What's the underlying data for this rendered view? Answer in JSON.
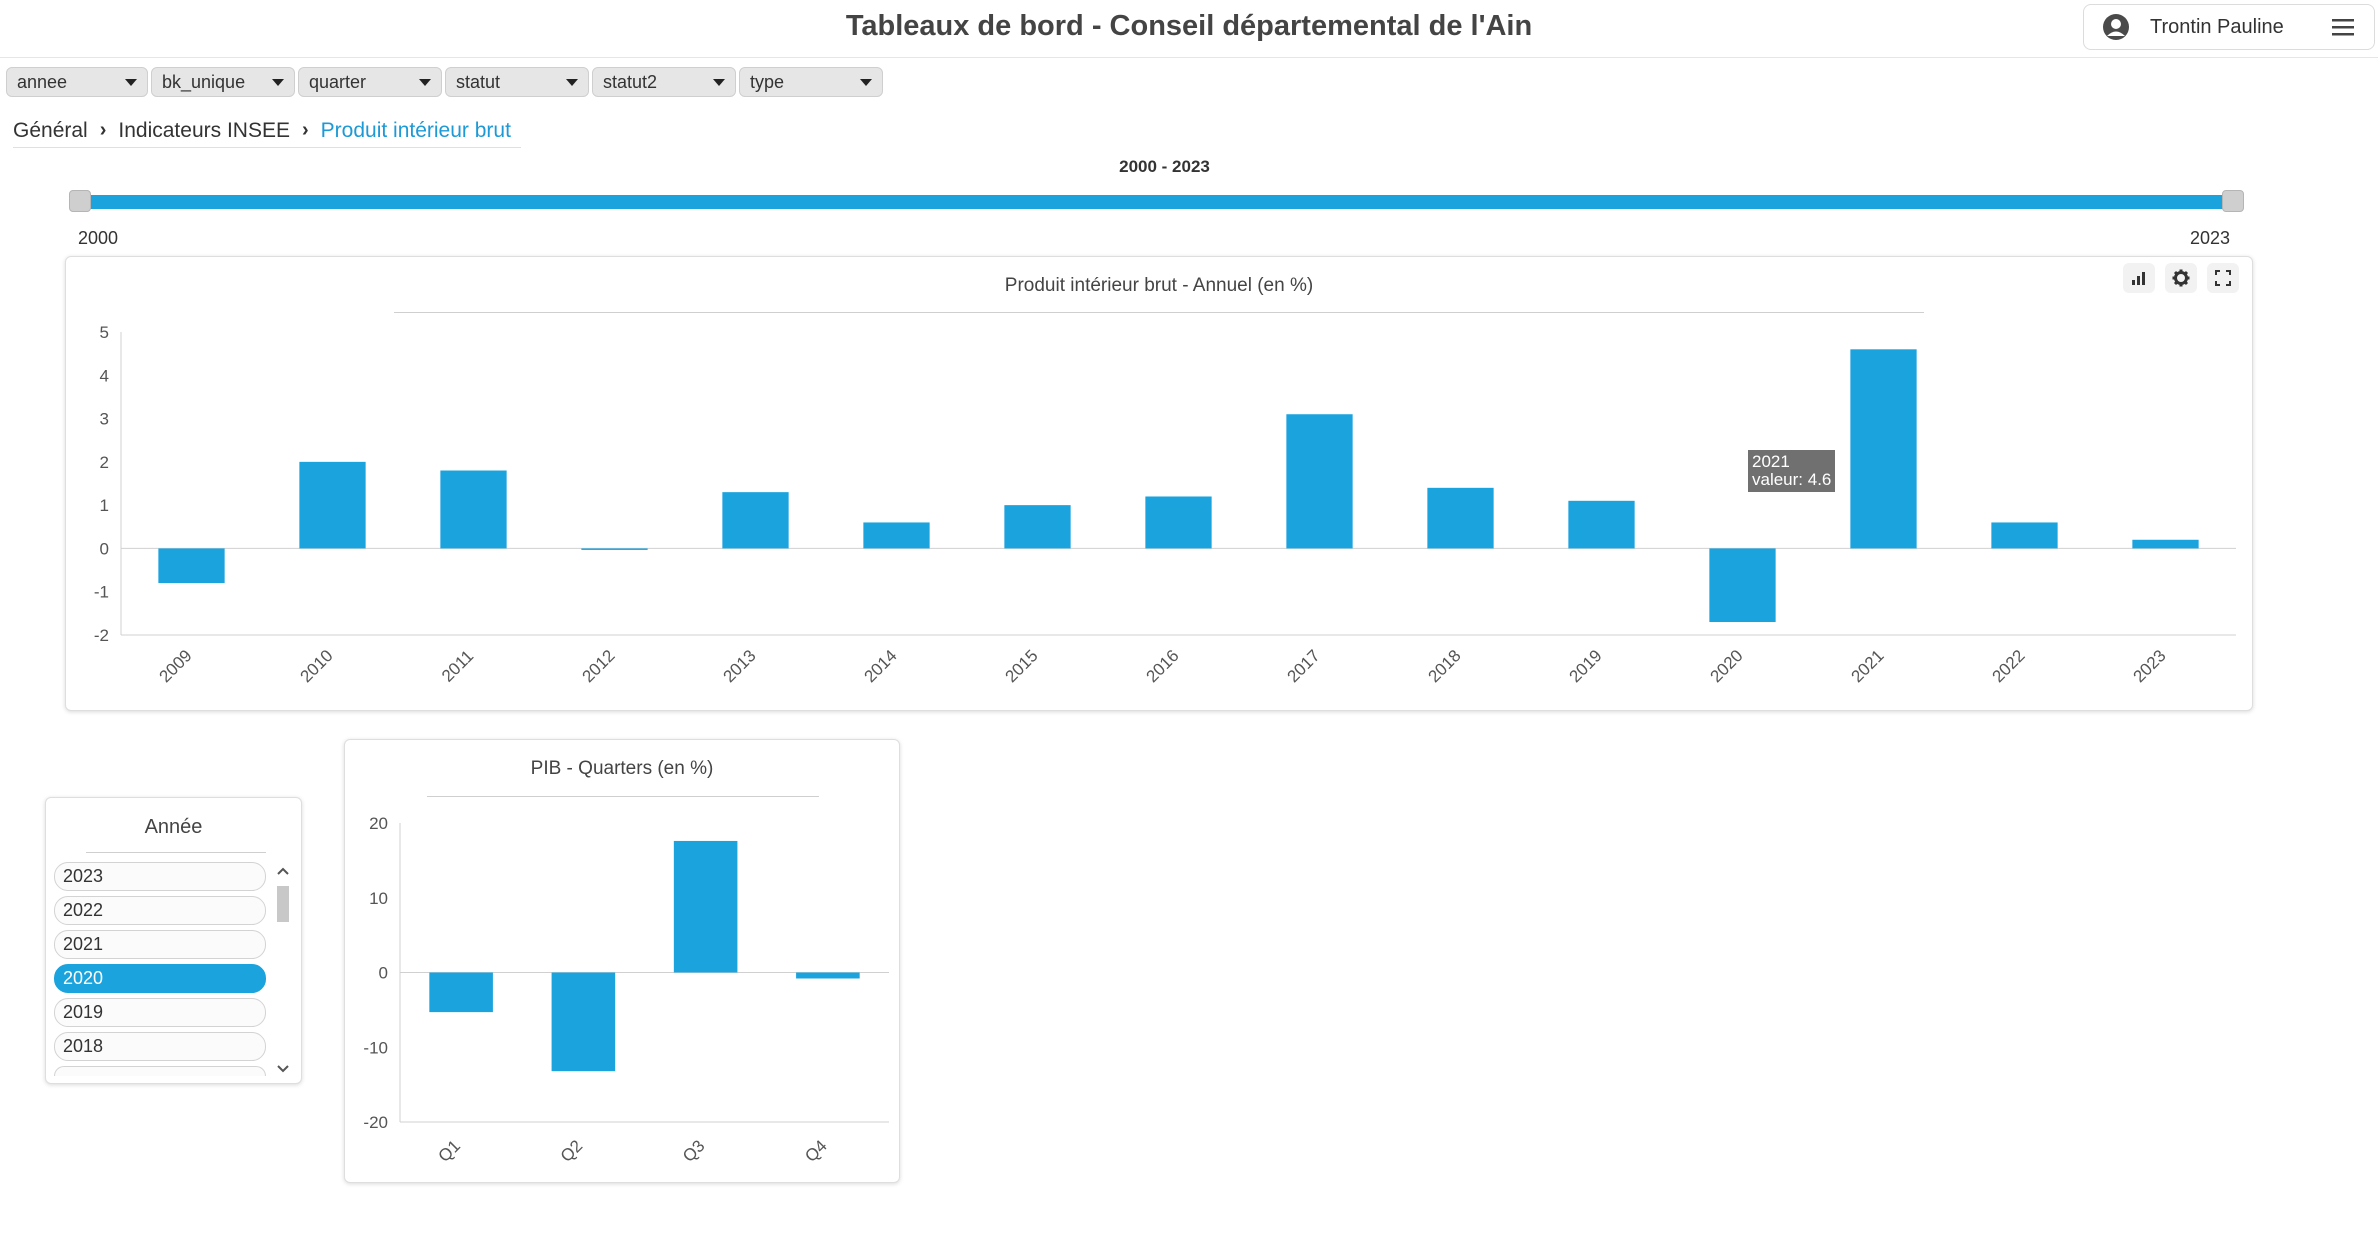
{
  "header": {
    "title": "Tableaux de bord - Conseil départemental de l'Ain",
    "user_name": "Trontin Pauline"
  },
  "filters": [
    {
      "label": "annee"
    },
    {
      "label": "bk_unique"
    },
    {
      "label": "quarter"
    },
    {
      "label": "statut"
    },
    {
      "label": "statut2"
    },
    {
      "label": "type"
    }
  ],
  "breadcrumb": {
    "items": [
      "Général",
      "Indicateurs INSEE"
    ],
    "current": "Produit intérieur brut"
  },
  "range": {
    "label": "2000 - 2023",
    "min_label": "2000",
    "max_label": "2023"
  },
  "year_filter": {
    "title": "Année",
    "items": [
      "2023",
      "2022",
      "2021",
      "2020",
      "2019",
      "2018"
    ],
    "selected": "2020"
  },
  "tooltip": {
    "line1": "2021",
    "line2": "valeur: 4.6"
  },
  "colors": {
    "accent": "#1aa3dd",
    "bar": "#1aa3dd"
  },
  "chart_data": [
    {
      "type": "bar",
      "title": "Produit intérieur brut - Annuel (en %)",
      "categories": [
        "2009",
        "2010",
        "2011",
        "2012",
        "2013",
        "2014",
        "2015",
        "2016",
        "2017",
        "2018",
        "2019",
        "2020",
        "2021",
        "2022",
        "2023"
      ],
      "values": [
        -0.8,
        2.0,
        1.8,
        0.0,
        1.3,
        0.6,
        1.0,
        1.2,
        3.1,
        1.4,
        1.1,
        -1.7,
        4.6,
        0.6,
        0.2
      ],
      "yticks": [
        5,
        4,
        3,
        2,
        1,
        0,
        -1,
        -2
      ],
      "ylim": [
        -2,
        5
      ],
      "grid": false
    },
    {
      "type": "bar",
      "title": "PIB - Quarters (en %)",
      "categories": [
        "Q1",
        "Q2",
        "Q3",
        "Q4"
      ],
      "values": [
        -5.3,
        -13.2,
        17.6,
        -0.8
      ],
      "yticks": [
        20,
        10,
        0,
        -10,
        -20
      ],
      "ylim": [
        -20,
        20
      ],
      "grid": false
    }
  ]
}
